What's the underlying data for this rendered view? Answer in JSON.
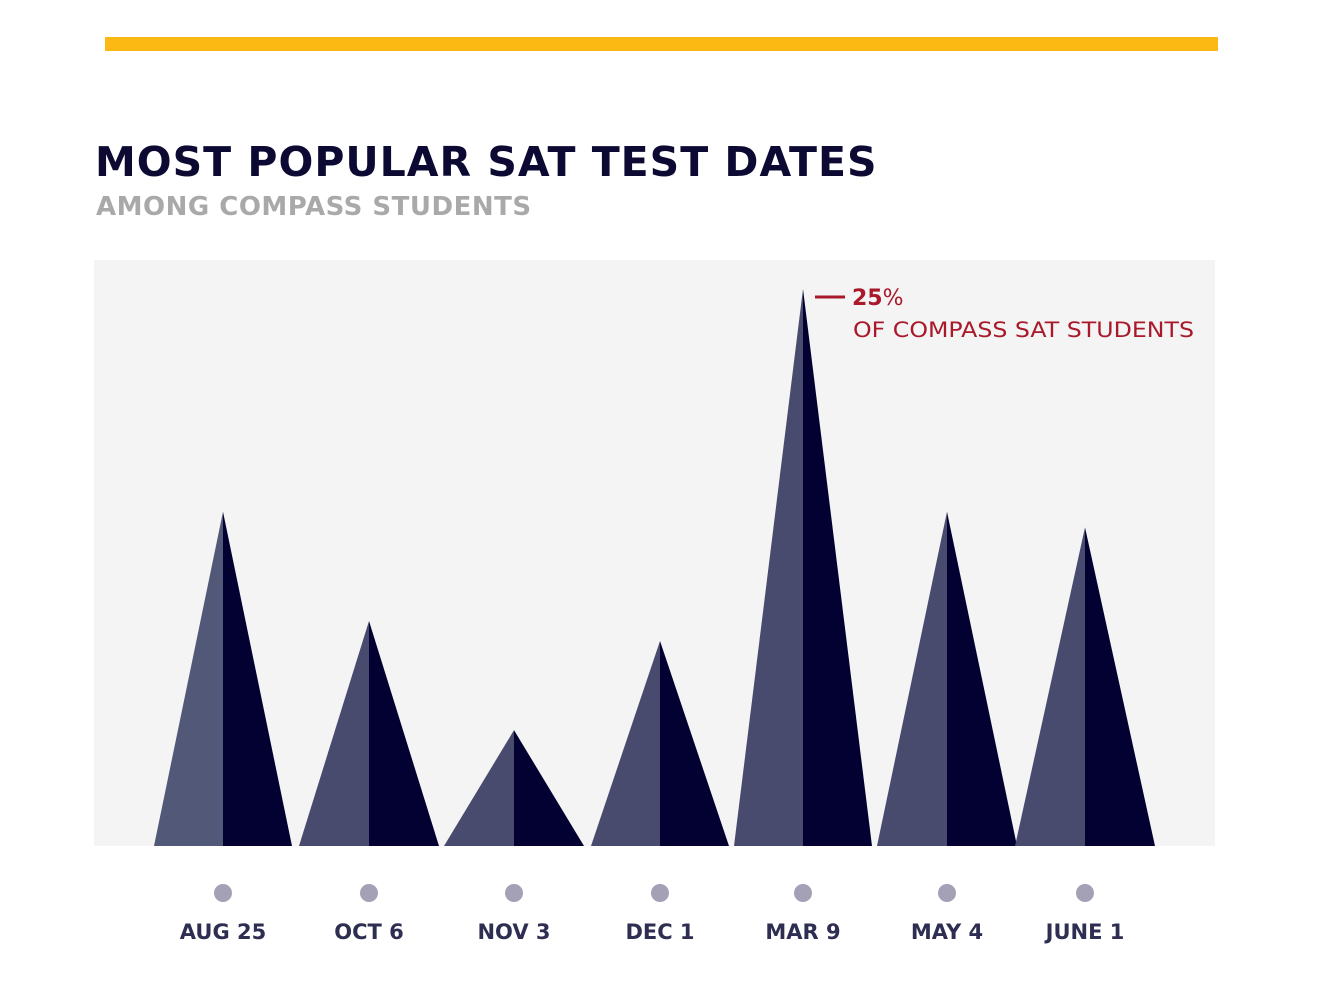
{
  "header": {
    "title": "MOST POPULAR SAT TEST DATES",
    "subtitle": "AMONG COMPASS STUDENTS"
  },
  "colors": {
    "accent_bar": "#fdb913",
    "plot_background": "#f3f4f3",
    "peak_light_face": "#484a6e",
    "peak_light_face_first": "#525878",
    "peak_dark_face": "#020131",
    "tick_dot": "#a4a1b6",
    "tick_label": "#2e2d52",
    "annotation": "#a9182b"
  },
  "chart_data": {
    "type": "area",
    "title": "MOST POPULAR SAT TEST DATES",
    "subtitle": "AMONG COMPASS STUDENTS",
    "xlabel": "",
    "ylabel": "",
    "categories": [
      "AUG 25",
      "OCT 6",
      "NOV 3",
      "DEC 1",
      "MAR 9",
      "MAY 4",
      "JUNE 1"
    ],
    "values": [
      15,
      10.1,
      5.2,
      9.2,
      25,
      15,
      14.3
    ],
    "unit": "%",
    "ylim": [
      0,
      26.3
    ],
    "grid": false,
    "legend": "none",
    "annotations": [
      {
        "category": "MAR 9",
        "value_label": "25",
        "unit_label": "%",
        "text": "OF COMPASS SAT STUDENTS"
      }
    ]
  }
}
